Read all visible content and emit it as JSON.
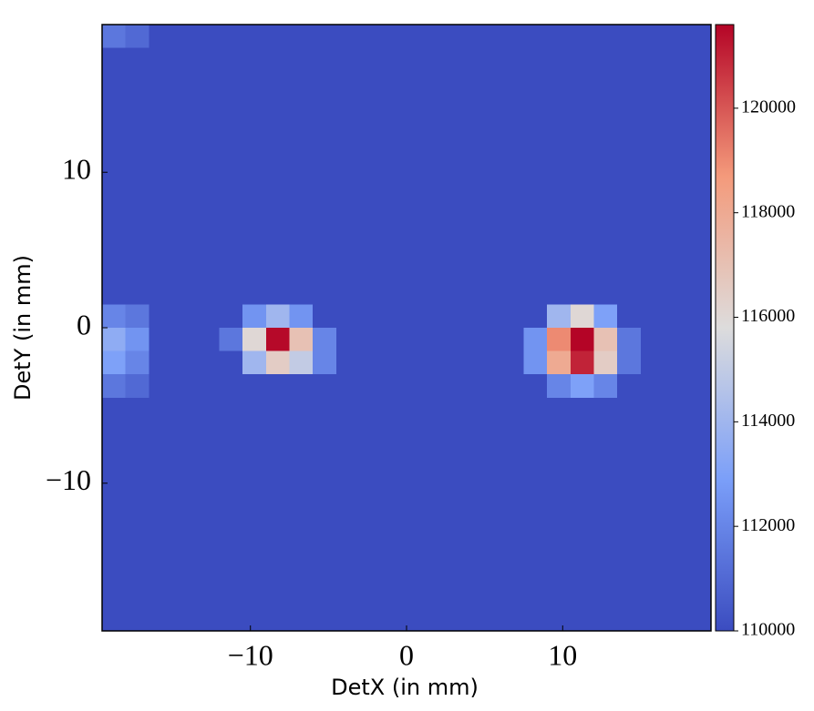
{
  "chart_data": {
    "type": "heatmap",
    "x_label": "DetX (in mm)",
    "y_label": "DetY (in mm)",
    "xlim": [
      -19.5,
      19.5
    ],
    "ylim": [
      -19.5,
      19.5
    ],
    "xticks": [
      {
        "value": -10,
        "label": "−10"
      },
      0,
      10
    ],
    "yticks": [
      {
        "value": -10,
        "label": "−10"
      },
      0,
      10
    ],
    "colormap": "coolwarm",
    "clim": [
      110000,
      121600
    ],
    "cticks": [
      110000,
      112000,
      114000,
      116000,
      118000,
      120000
    ],
    "z": [
      [
        111500,
        111000,
        110000,
        110000,
        110000,
        110000,
        110000,
        110000,
        110000,
        110000,
        110000,
        110000,
        110000,
        110000,
        110000,
        110000,
        110000,
        110000,
        110000,
        110000,
        110000,
        110000,
        110000,
        110000,
        110000,
        110000
      ],
      [
        110000,
        110000,
        110000,
        110000,
        110000,
        110000,
        110000,
        110000,
        110000,
        110000,
        110000,
        110000,
        110000,
        110000,
        110000,
        110000,
        110000,
        110000,
        110000,
        110000,
        110000,
        110000,
        110000,
        110000,
        110000,
        110000
      ],
      [
        110000,
        110000,
        110000,
        110000,
        110000,
        110000,
        110000,
        110000,
        110000,
        110000,
        110000,
        110000,
        110000,
        110000,
        110000,
        110000,
        110000,
        110000,
        110000,
        110000,
        110000,
        110000,
        110000,
        110000,
        110000,
        110000
      ],
      [
        110000,
        110000,
        110000,
        110000,
        110000,
        110000,
        110000,
        110000,
        110000,
        110000,
        110000,
        110000,
        110000,
        110000,
        110000,
        110000,
        110000,
        110000,
        110000,
        110000,
        110000,
        110000,
        110000,
        110000,
        110000,
        110000
      ],
      [
        110000,
        110000,
        110000,
        110000,
        110000,
        110000,
        110000,
        110000,
        110000,
        110000,
        110000,
        110000,
        110000,
        110000,
        110000,
        110000,
        110000,
        110000,
        110000,
        110000,
        110000,
        110000,
        110000,
        110000,
        110000,
        110000
      ],
      [
        110000,
        110000,
        110000,
        110000,
        110000,
        110000,
        110000,
        110000,
        110000,
        110000,
        110000,
        110000,
        110000,
        110000,
        110000,
        110000,
        110000,
        110000,
        110000,
        110000,
        110000,
        110000,
        110000,
        110000,
        110000,
        110000
      ],
      [
        110000,
        110000,
        110000,
        110000,
        110000,
        110000,
        110000,
        110000,
        110000,
        110000,
        110000,
        110000,
        110000,
        110000,
        110000,
        110000,
        110000,
        110000,
        110000,
        110000,
        110000,
        110000,
        110000,
        110000,
        110000,
        110000
      ],
      [
        110000,
        110000,
        110000,
        110000,
        110000,
        110000,
        110000,
        110000,
        110000,
        110000,
        110000,
        110000,
        110000,
        110000,
        110000,
        110000,
        110000,
        110000,
        110000,
        110000,
        110000,
        110000,
        110000,
        110000,
        110000,
        110000
      ],
      [
        110000,
        110000,
        110000,
        110000,
        110000,
        110000,
        110000,
        110000,
        110000,
        110000,
        110000,
        110000,
        110000,
        110000,
        110000,
        110000,
        110000,
        110000,
        110000,
        110000,
        110000,
        110000,
        110000,
        110000,
        110000,
        110000
      ],
      [
        110000,
        110000,
        110000,
        110000,
        110000,
        110000,
        110000,
        110000,
        110000,
        110000,
        110000,
        110000,
        110000,
        110000,
        110000,
        110000,
        110000,
        110000,
        110000,
        110000,
        110000,
        110000,
        110000,
        110000,
        110000,
        110000
      ],
      [
        110000,
        110000,
        110000,
        110000,
        110000,
        110000,
        110000,
        110000,
        110000,
        110000,
        110000,
        110000,
        110000,
        110000,
        110000,
        110000,
        110000,
        110000,
        110000,
        110000,
        110000,
        110000,
        110000,
        110000,
        110000,
        110000
      ],
      [
        110000,
        110000,
        110000,
        110000,
        110000,
        110000,
        110000,
        110000,
        110000,
        110000,
        110000,
        110000,
        110000,
        110000,
        110000,
        110000,
        110000,
        110000,
        110000,
        110000,
        110000,
        110000,
        110000,
        110000,
        110000,
        110000
      ],
      [
        112000,
        111500,
        110000,
        110000,
        110000,
        110000,
        112500,
        114000,
        112500,
        110000,
        110000,
        110000,
        110000,
        110000,
        110000,
        110000,
        110000,
        110000,
        110000,
        114000,
        116000,
        113000,
        110000,
        110000,
        110000,
        110000
      ],
      [
        113500,
        112500,
        110000,
        110000,
        110000,
        111500,
        116000,
        121500,
        117000,
        112000,
        110000,
        110000,
        110000,
        110000,
        110000,
        110000,
        110000,
        110000,
        112500,
        119000,
        122000,
        117000,
        111500,
        110000,
        110000,
        110000
      ],
      [
        113000,
        112000,
        110000,
        110000,
        110000,
        110000,
        114000,
        116500,
        115000,
        112000,
        110000,
        110000,
        110000,
        110000,
        110000,
        110000,
        110000,
        110000,
        112500,
        118000,
        121000,
        116500,
        111500,
        110000,
        110000,
        110000
      ],
      [
        111500,
        111000,
        110000,
        110000,
        110000,
        110000,
        110000,
        110000,
        110000,
        110000,
        110000,
        110000,
        110000,
        110000,
        110000,
        110000,
        110000,
        110000,
        110000,
        112000,
        113000,
        112000,
        110000,
        110000,
        110000,
        110000
      ],
      [
        110000,
        110000,
        110000,
        110000,
        110000,
        110000,
        110000,
        110000,
        110000,
        110000,
        110000,
        110000,
        110000,
        110000,
        110000,
        110000,
        110000,
        110000,
        110000,
        110000,
        110000,
        110000,
        110000,
        110000,
        110000,
        110000
      ],
      [
        110000,
        110000,
        110000,
        110000,
        110000,
        110000,
        110000,
        110000,
        110000,
        110000,
        110000,
        110000,
        110000,
        110000,
        110000,
        110000,
        110000,
        110000,
        110000,
        110000,
        110000,
        110000,
        110000,
        110000,
        110000,
        110000
      ],
      [
        110000,
        110000,
        110000,
        110000,
        110000,
        110000,
        110000,
        110000,
        110000,
        110000,
        110000,
        110000,
        110000,
        110000,
        110000,
        110000,
        110000,
        110000,
        110000,
        110000,
        110000,
        110000,
        110000,
        110000,
        110000,
        110000
      ],
      [
        110000,
        110000,
        110000,
        110000,
        110000,
        110000,
        110000,
        110000,
        110000,
        110000,
        110000,
        110000,
        110000,
        110000,
        110000,
        110000,
        110000,
        110000,
        110000,
        110000,
        110000,
        110000,
        110000,
        110000,
        110000,
        110000
      ],
      [
        110000,
        110000,
        110000,
        110000,
        110000,
        110000,
        110000,
        110000,
        110000,
        110000,
        110000,
        110000,
        110000,
        110000,
        110000,
        110000,
        110000,
        110000,
        110000,
        110000,
        110000,
        110000,
        110000,
        110000,
        110000,
        110000
      ],
      [
        110000,
        110000,
        110000,
        110000,
        110000,
        110000,
        110000,
        110000,
        110000,
        110000,
        110000,
        110000,
        110000,
        110000,
        110000,
        110000,
        110000,
        110000,
        110000,
        110000,
        110000,
        110000,
        110000,
        110000,
        110000,
        110000
      ],
      [
        110000,
        110000,
        110000,
        110000,
        110000,
        110000,
        110000,
        110000,
        110000,
        110000,
        110000,
        110000,
        110000,
        110000,
        110000,
        110000,
        110000,
        110000,
        110000,
        110000,
        110000,
        110000,
        110000,
        110000,
        110000,
        110000
      ],
      [
        110000,
        110000,
        110000,
        110000,
        110000,
        110000,
        110000,
        110000,
        110000,
        110000,
        110000,
        110000,
        110000,
        110000,
        110000,
        110000,
        110000,
        110000,
        110000,
        110000,
        110000,
        110000,
        110000,
        110000,
        110000,
        110000
      ],
      [
        110000,
        110000,
        110000,
        110000,
        110000,
        110000,
        110000,
        110000,
        110000,
        110000,
        110000,
        110000,
        110000,
        110000,
        110000,
        110000,
        110000,
        110000,
        110000,
        110000,
        110000,
        110000,
        110000,
        110000,
        110000,
        110000
      ],
      [
        110000,
        110000,
        110000,
        110000,
        110000,
        110000,
        110000,
        110000,
        110000,
        110000,
        110000,
        110000,
        110000,
        110000,
        110000,
        110000,
        110000,
        110000,
        110000,
        110000,
        110000,
        110000,
        110000,
        110000,
        110000,
        110000
      ]
    ]
  }
}
